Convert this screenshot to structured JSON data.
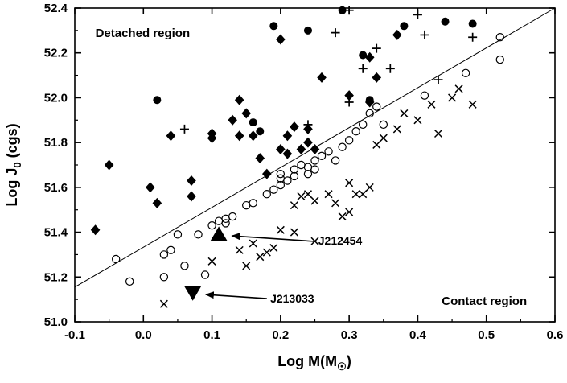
{
  "figure": {
    "background_color": "#ffffff",
    "frame_color": "#000000",
    "marker_color": "#000000"
  },
  "chart_data": {
    "type": "scatter",
    "title": "",
    "xlabel": "Log M(M☉)",
    "ylabel": "Log J0 (cgs)",
    "xlabel_parts": {
      "pre": "Log M(M",
      "sub": "☉",
      "post": ")"
    },
    "ylabel_parts": {
      "pre": "Log J",
      "sub": "0",
      "post": " (cgs)"
    },
    "xlim": [
      -0.1,
      0.6
    ],
    "ylim": [
      51.0,
      52.4
    ],
    "grid": false,
    "legend": "none",
    "xticks": [
      -0.1,
      0.0,
      0.1,
      0.2,
      0.3,
      0.4,
      0.5,
      0.6
    ],
    "xtick_labels": [
      "-0.1",
      "0.0",
      "0.1",
      "0.2",
      "0.3",
      "0.4",
      "0.5",
      "0.6"
    ],
    "yticks": [
      51.0,
      51.2,
      51.4,
      51.6,
      51.8,
      52.0,
      52.2,
      52.4
    ],
    "ytick_labels": [
      "51.0",
      "51.2",
      "51.4",
      "51.6",
      "51.8",
      "52.0",
      "52.2",
      "52.4"
    ],
    "divider_line": {
      "x": [
        -0.1,
        0.6
      ],
      "y": [
        51.155,
        52.4
      ]
    },
    "series": [
      {
        "name": "detached-filled-diamonds",
        "marker": "filled-diamond",
        "points": [
          [
            -0.07,
            51.41
          ],
          [
            -0.05,
            51.7
          ],
          [
            0.01,
            51.6
          ],
          [
            0.02,
            51.53
          ],
          [
            0.04,
            51.83
          ],
          [
            0.07,
            51.63
          ],
          [
            0.07,
            51.56
          ],
          [
            0.1,
            51.82
          ],
          [
            0.1,
            51.84
          ],
          [
            0.13,
            51.9
          ],
          [
            0.14,
            51.83
          ],
          [
            0.14,
            51.99
          ],
          [
            0.15,
            51.93
          ],
          [
            0.16,
            51.83
          ],
          [
            0.17,
            51.73
          ],
          [
            0.18,
            51.66
          ],
          [
            0.2,
            52.26
          ],
          [
            0.2,
            51.77
          ],
          [
            0.21,
            51.75
          ],
          [
            0.21,
            51.83
          ],
          [
            0.22,
            51.87
          ],
          [
            0.23,
            51.77
          ],
          [
            0.24,
            51.86
          ],
          [
            0.24,
            51.8
          ],
          [
            0.25,
            51.77
          ],
          [
            0.26,
            52.09
          ],
          [
            0.3,
            52.01
          ],
          [
            0.33,
            52.18
          ],
          [
            0.33,
            51.98
          ],
          [
            0.34,
            52.09
          ],
          [
            0.37,
            52.28
          ]
        ]
      },
      {
        "name": "detached-filled-circles",
        "marker": "filled-circle",
        "points": [
          [
            0.02,
            51.99
          ],
          [
            0.16,
            51.89
          ],
          [
            0.17,
            51.85
          ],
          [
            0.19,
            52.32
          ],
          [
            0.24,
            52.3
          ],
          [
            0.29,
            52.39
          ],
          [
            0.32,
            52.19
          ],
          [
            0.33,
            51.99
          ],
          [
            0.38,
            52.32
          ],
          [
            0.44,
            52.34
          ],
          [
            0.48,
            52.33
          ]
        ]
      },
      {
        "name": "detached-plus-signs",
        "marker": "plus",
        "points": [
          [
            0.06,
            51.86
          ],
          [
            0.24,
            51.88
          ],
          [
            0.28,
            52.29
          ],
          [
            0.3,
            52.39
          ],
          [
            0.3,
            51.98
          ],
          [
            0.32,
            52.13
          ],
          [
            0.34,
            52.22
          ],
          [
            0.36,
            52.13
          ],
          [
            0.4,
            52.37
          ],
          [
            0.41,
            52.28
          ],
          [
            0.43,
            52.08
          ],
          [
            0.48,
            52.27
          ]
        ]
      },
      {
        "name": "contact-open-circles",
        "marker": "open-circle",
        "points": [
          [
            -0.04,
            51.28
          ],
          [
            -0.02,
            51.18
          ],
          [
            0.03,
            51.3
          ],
          [
            0.03,
            51.2
          ],
          [
            0.04,
            51.32
          ],
          [
            0.05,
            51.39
          ],
          [
            0.06,
            51.25
          ],
          [
            0.08,
            51.39
          ],
          [
            0.09,
            51.21
          ],
          [
            0.1,
            51.43
          ],
          [
            0.11,
            51.45
          ],
          [
            0.12,
            51.44
          ],
          [
            0.12,
            51.46
          ],
          [
            0.13,
            51.47
          ],
          [
            0.15,
            51.52
          ],
          [
            0.16,
            51.53
          ],
          [
            0.18,
            51.57
          ],
          [
            0.19,
            51.59
          ],
          [
            0.2,
            51.61
          ],
          [
            0.2,
            51.64
          ],
          [
            0.2,
            51.66
          ],
          [
            0.21,
            51.63
          ],
          [
            0.22,
            51.65
          ],
          [
            0.22,
            51.68
          ],
          [
            0.23,
            51.7
          ],
          [
            0.24,
            51.66
          ],
          [
            0.24,
            51.69
          ],
          [
            0.25,
            51.72
          ],
          [
            0.25,
            51.68
          ],
          [
            0.26,
            51.74
          ],
          [
            0.27,
            51.76
          ],
          [
            0.28,
            51.72
          ],
          [
            0.29,
            51.78
          ],
          [
            0.3,
            51.81
          ],
          [
            0.31,
            51.85
          ],
          [
            0.32,
            51.88
          ],
          [
            0.33,
            51.93
          ],
          [
            0.34,
            51.96
          ],
          [
            0.35,
            51.88
          ],
          [
            0.41,
            52.01
          ],
          [
            0.47,
            52.11
          ],
          [
            0.52,
            52.17
          ],
          [
            0.52,
            52.27
          ]
        ]
      },
      {
        "name": "contact-crosses",
        "marker": "cross",
        "points": [
          [
            0.03,
            51.08
          ],
          [
            0.1,
            51.27
          ],
          [
            0.14,
            51.32
          ],
          [
            0.15,
            51.25
          ],
          [
            0.16,
            51.35
          ],
          [
            0.17,
            51.29
          ],
          [
            0.18,
            51.31
          ],
          [
            0.19,
            51.33
          ],
          [
            0.2,
            51.41
          ],
          [
            0.22,
            51.4
          ],
          [
            0.22,
            51.52
          ],
          [
            0.23,
            51.56
          ],
          [
            0.24,
            51.57
          ],
          [
            0.25,
            51.54
          ],
          [
            0.25,
            51.36
          ],
          [
            0.27,
            51.57
          ],
          [
            0.28,
            51.53
          ],
          [
            0.29,
            51.47
          ],
          [
            0.3,
            51.49
          ],
          [
            0.3,
            51.62
          ],
          [
            0.31,
            51.57
          ],
          [
            0.32,
            51.57
          ],
          [
            0.33,
            51.6
          ],
          [
            0.34,
            51.79
          ],
          [
            0.35,
            51.82
          ],
          [
            0.37,
            51.86
          ],
          [
            0.38,
            51.93
          ],
          [
            0.4,
            51.9
          ],
          [
            0.42,
            51.97
          ],
          [
            0.43,
            51.84
          ],
          [
            0.45,
            52.0
          ],
          [
            0.46,
            52.04
          ],
          [
            0.48,
            51.97
          ]
        ]
      },
      {
        "name": "J212454",
        "marker": "filled-triangle-up",
        "points": [
          [
            0.11,
            51.39
          ]
        ]
      },
      {
        "name": "J213033",
        "marker": "filled-triangle-down",
        "points": [
          [
            0.072,
            51.13
          ]
        ]
      }
    ],
    "annotations": [
      {
        "text": "Detached region",
        "x": -0.07,
        "y": 52.27,
        "anchor": "start",
        "size": 15
      },
      {
        "text": "Contact region",
        "x": 0.435,
        "y": 51.075,
        "anchor": "start",
        "size": 15
      },
      {
        "text": "J212454",
        "x": 0.255,
        "y": 51.345,
        "anchor": "start",
        "size": 14,
        "arrow": {
          "x1": 0.25,
          "y1": 51.359,
          "x2": 0.129,
          "y2": 51.384
        }
      },
      {
        "text": "J213033",
        "x": 0.185,
        "y": 51.086,
        "anchor": "start",
        "size": 14,
        "arrow": {
          "x1": 0.18,
          "y1": 51.104,
          "x2": 0.091,
          "y2": 51.122
        }
      }
    ]
  }
}
